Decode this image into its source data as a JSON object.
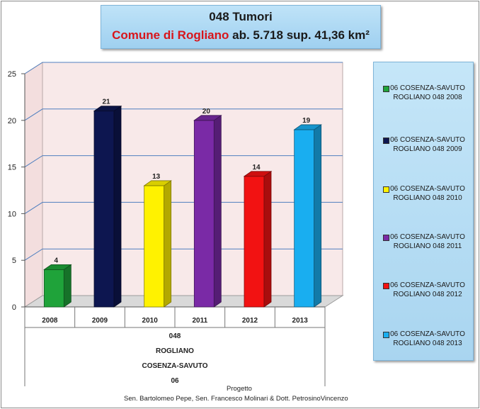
{
  "header": {
    "title": "048 Tumori",
    "comune": "Comune di Rogliano",
    "stats": "ab. 5.718 sup. 41,36 km²"
  },
  "chart_data": {
    "type": "bar",
    "categories": [
      "2008",
      "2009",
      "2010",
      "2011",
      "2012",
      "2013"
    ],
    "values": [
      4,
      21,
      13,
      20,
      14,
      19
    ],
    "data_labels": [
      "4",
      "21",
      "13",
      "20",
      "14",
      "19"
    ],
    "ylim": [
      0,
      25
    ],
    "yticks": [
      0,
      5,
      10,
      15,
      20,
      25
    ],
    "grid": true,
    "legend_placement": "right",
    "category_groups": [
      "048",
      "ROGLIANO",
      "COSENZA-SAVUTO",
      "06"
    ],
    "series": [
      {
        "name": "06 COSENZA-SAVUTO ROGLIANO 048 2008",
        "name_line1": "06 COSENZA-SAVUTO",
        "name_line2": "ROGLIANO 048 2008",
        "color": "#1fa33a"
      },
      {
        "name": "06 COSENZA-SAVUTO ROGLIANO 048 2009",
        "name_line1": "06 COSENZA-SAVUTO",
        "name_line2": "ROGLIANO 048 2009",
        "color": "#0d1650"
      },
      {
        "name": "06 COSENZA-SAVUTO ROGLIANO 048 2010",
        "name_line1": "06 COSENZA-SAVUTO",
        "name_line2": "ROGLIANO 048 2010",
        "color": "#fff200"
      },
      {
        "name": "06 COSENZA-SAVUTO ROGLIANO 048 2011",
        "name_line1": "06 COSENZA-SAVUTO",
        "name_line2": "ROGLIANO 048 2011",
        "color": "#7a2aa6"
      },
      {
        "name": "06 COSENZA-SAVUTO ROGLIANO 048 2012",
        "name_line1": "06 COSENZA-SAVUTO",
        "name_line2": "ROGLIANO 048 2012",
        "color": "#f21212"
      },
      {
        "name": "06 COSENZA-SAVUTO ROGLIANO 048 2013",
        "name_line1": "06 COSENZA-SAVUTO",
        "name_line2": "ROGLIANO 048 2013",
        "color": "#19aef0"
      }
    ]
  },
  "footer": {
    "line1": "Progetto",
    "line2": "Sen. Bartolomeo Pepe, Sen. Francesco Molinari & Dott. PetrosinoVincenzo"
  }
}
